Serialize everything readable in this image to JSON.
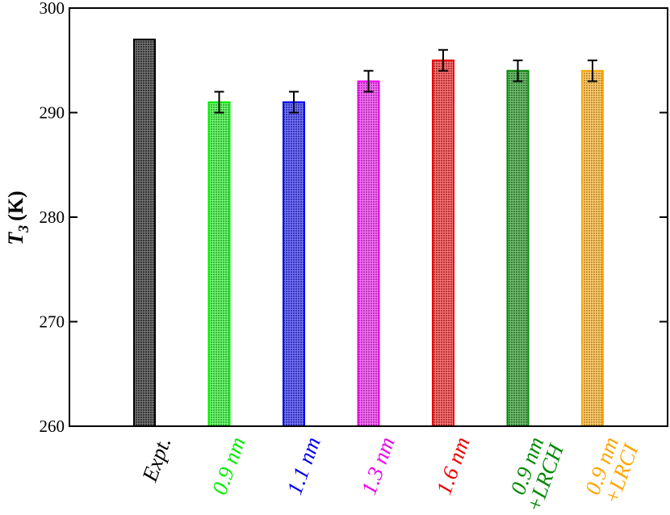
{
  "chart_data": {
    "type": "bar",
    "y_label": {
      "symbol": "T",
      "subscript": "3",
      "unit": "(K)"
    },
    "categories": [
      "Expt.",
      "0.9 nm",
      "1.1 nm",
      "1.3 nm",
      "1.6 nm",
      "0.9 nm\n+LRCH",
      "0.9 nm\n+LRCI"
    ],
    "values": [
      297,
      291,
      291,
      293,
      295,
      294,
      294
    ],
    "errors": [
      null,
      1,
      1,
      1,
      1,
      1,
      1
    ],
    "colors": [
      "#000000",
      "#00ee00",
      "#0000ee",
      "#ee00ee",
      "#ee0000",
      "#008800",
      "#ffa500"
    ],
    "ylim": [
      260,
      300
    ],
    "yticks": [
      260,
      270,
      280,
      290,
      300
    ]
  }
}
